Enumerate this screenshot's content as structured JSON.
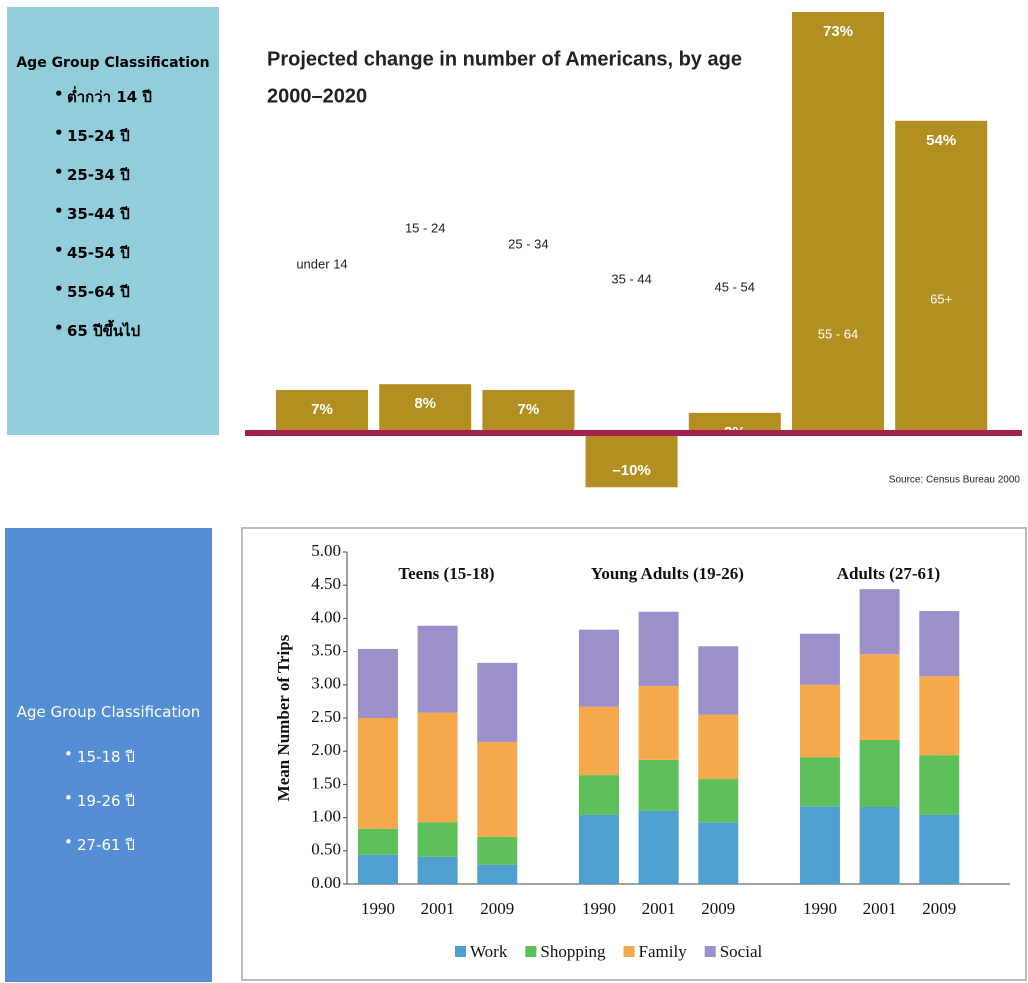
{
  "sidebars": [
    {
      "title": "Age Group Classification",
      "items": [
        "ต่ำกว่า 14 ปี",
        "15-24 ปี",
        "25-34 ปี",
        "35-44 ปี",
        "45-54 ปี",
        "55-64 ปี",
        "65 ปีขึ้นไป"
      ]
    },
    {
      "title": "Age Group Classification",
      "items": [
        "15-18 ปี",
        "19-26 ปี",
        "27-61 ปี"
      ]
    }
  ],
  "chart_data": [
    {
      "type": "bar",
      "title": "Projected change in number of Americans, by age",
      "subtitle": "2000–2020",
      "categories": [
        "under 14",
        "15 - 24",
        "25 - 34",
        "35 - 44",
        "45 - 54",
        "55 - 64",
        "65+"
      ],
      "values": [
        7,
        8,
        7,
        -10,
        3,
        73,
        54
      ],
      "value_labels": [
        "7%",
        "8%",
        "7%",
        "–10%",
        "3%",
        "73%",
        "54%"
      ],
      "color": "#b38f22",
      "baseline_color": "#a3204f",
      "source": "Source: Census Bureau 2000"
    },
    {
      "type": "stacked_bar",
      "y_label": "Mean Number of Trips",
      "groups": [
        "Teens (15-18)",
        "Young Adults (19-26)",
        "Adults (27-61)"
      ],
      "categories": [
        "1990",
        "2001",
        "2009",
        "1990",
        "2001",
        "2009",
        "1990",
        "2001",
        "2009"
      ],
      "series": [
        {
          "name": "Work",
          "color": "#4f9fcf",
          "values": [
            0.44,
            0.41,
            0.29,
            1.04,
            1.1,
            0.93,
            1.17,
            1.16,
            1.04
          ]
        },
        {
          "name": "Shopping",
          "color": "#5cbf5a",
          "values": [
            0.39,
            0.52,
            0.42,
            0.6,
            0.77,
            0.65,
            0.74,
            1.01,
            0.9
          ]
        },
        {
          "name": "Family",
          "color": "#f6a94b",
          "values": [
            1.67,
            1.65,
            1.43,
            1.03,
            1.11,
            0.97,
            1.09,
            1.29,
            1.19
          ]
        },
        {
          "name": "Social",
          "color": "#9c8fca",
          "values": [
            1.04,
            1.31,
            1.19,
            1.16,
            1.12,
            1.03,
            0.77,
            0.98,
            0.98
          ]
        }
      ],
      "ylim": [
        0,
        5
      ],
      "yticks": [
        {
          "value": 0,
          "label": "0.00"
        },
        {
          "value": 0.5,
          "label": "0.50"
        },
        {
          "value": 1,
          "label": "1.00"
        },
        {
          "value": 1.5,
          "label": "1.50"
        },
        {
          "value": 2,
          "label": "2.00"
        },
        {
          "value": 2.5,
          "label": "2.50"
        },
        {
          "value": 3,
          "label": "3.00"
        },
        {
          "value": 3.5,
          "label": "3.50"
        },
        {
          "value": 4,
          "label": "4.00"
        },
        {
          "value": 4.5,
          "label": "4.50"
        },
        {
          "value": 5,
          "label": "5.00"
        }
      ]
    }
  ]
}
